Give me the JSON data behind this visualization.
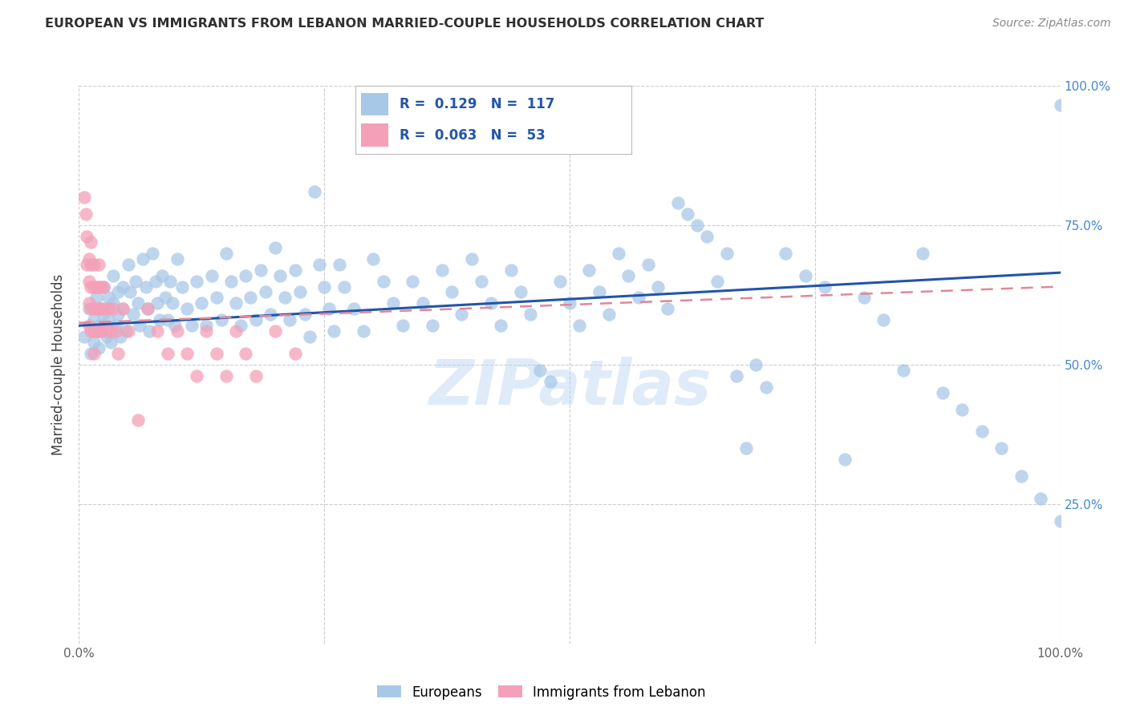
{
  "title": "EUROPEAN VS IMMIGRANTS FROM LEBANON MARRIED-COUPLE HOUSEHOLDS CORRELATION CHART",
  "source": "Source: ZipAtlas.com",
  "ylabel": "Married-couple Households",
  "watermark": "ZIPatlas",
  "xlim": [
    0,
    1
  ],
  "ylim": [
    0,
    1
  ],
  "blue_color": "#a8c8e8",
  "pink_color": "#f4a0b8",
  "line_blue": "#2255aa",
  "line_pink": "#e08898",
  "grid_color": "#cccccc",
  "title_color": "#303030",
  "source_color": "#888888",
  "legend_text_color": "#2255aa",
  "blue_scatter": [
    [
      0.005,
      0.55
    ],
    [
      0.01,
      0.6
    ],
    [
      0.012,
      0.52
    ],
    [
      0.015,
      0.58
    ],
    [
      0.015,
      0.54
    ],
    [
      0.018,
      0.62
    ],
    [
      0.02,
      0.57
    ],
    [
      0.02,
      0.53
    ],
    [
      0.022,
      0.6
    ],
    [
      0.023,
      0.56
    ],
    [
      0.025,
      0.64
    ],
    [
      0.025,
      0.59
    ],
    [
      0.028,
      0.55
    ],
    [
      0.03,
      0.62
    ],
    [
      0.03,
      0.58
    ],
    [
      0.032,
      0.54
    ],
    [
      0.035,
      0.66
    ],
    [
      0.035,
      0.61
    ],
    [
      0.038,
      0.57
    ],
    [
      0.04,
      0.63
    ],
    [
      0.04,
      0.59
    ],
    [
      0.042,
      0.55
    ],
    [
      0.045,
      0.64
    ],
    [
      0.045,
      0.6
    ],
    [
      0.048,
      0.56
    ],
    [
      0.05,
      0.68
    ],
    [
      0.052,
      0.63
    ],
    [
      0.055,
      0.59
    ],
    [
      0.058,
      0.65
    ],
    [
      0.06,
      0.61
    ],
    [
      0.062,
      0.57
    ],
    [
      0.065,
      0.69
    ],
    [
      0.068,
      0.64
    ],
    [
      0.07,
      0.6
    ],
    [
      0.072,
      0.56
    ],
    [
      0.075,
      0.7
    ],
    [
      0.078,
      0.65
    ],
    [
      0.08,
      0.61
    ],
    [
      0.082,
      0.58
    ],
    [
      0.085,
      0.66
    ],
    [
      0.088,
      0.62
    ],
    [
      0.09,
      0.58
    ],
    [
      0.093,
      0.65
    ],
    [
      0.095,
      0.61
    ],
    [
      0.098,
      0.57
    ],
    [
      0.1,
      0.69
    ],
    [
      0.105,
      0.64
    ],
    [
      0.11,
      0.6
    ],
    [
      0.115,
      0.57
    ],
    [
      0.12,
      0.65
    ],
    [
      0.125,
      0.61
    ],
    [
      0.13,
      0.57
    ],
    [
      0.135,
      0.66
    ],
    [
      0.14,
      0.62
    ],
    [
      0.145,
      0.58
    ],
    [
      0.15,
      0.7
    ],
    [
      0.155,
      0.65
    ],
    [
      0.16,
      0.61
    ],
    [
      0.165,
      0.57
    ],
    [
      0.17,
      0.66
    ],
    [
      0.175,
      0.62
    ],
    [
      0.18,
      0.58
    ],
    [
      0.185,
      0.67
    ],
    [
      0.19,
      0.63
    ],
    [
      0.195,
      0.59
    ],
    [
      0.2,
      0.71
    ],
    [
      0.205,
      0.66
    ],
    [
      0.21,
      0.62
    ],
    [
      0.215,
      0.58
    ],
    [
      0.22,
      0.67
    ],
    [
      0.225,
      0.63
    ],
    [
      0.23,
      0.59
    ],
    [
      0.235,
      0.55
    ],
    [
      0.24,
      0.81
    ],
    [
      0.245,
      0.68
    ],
    [
      0.25,
      0.64
    ],
    [
      0.255,
      0.6
    ],
    [
      0.26,
      0.56
    ],
    [
      0.265,
      0.68
    ],
    [
      0.27,
      0.64
    ],
    [
      0.28,
      0.6
    ],
    [
      0.29,
      0.56
    ],
    [
      0.3,
      0.69
    ],
    [
      0.31,
      0.65
    ],
    [
      0.32,
      0.61
    ],
    [
      0.33,
      0.57
    ],
    [
      0.34,
      0.65
    ],
    [
      0.35,
      0.61
    ],
    [
      0.36,
      0.57
    ],
    [
      0.37,
      0.67
    ],
    [
      0.38,
      0.63
    ],
    [
      0.39,
      0.59
    ],
    [
      0.4,
      0.69
    ],
    [
      0.41,
      0.65
    ],
    [
      0.42,
      0.61
    ],
    [
      0.43,
      0.57
    ],
    [
      0.44,
      0.67
    ],
    [
      0.45,
      0.63
    ],
    [
      0.46,
      0.59
    ],
    [
      0.47,
      0.49
    ],
    [
      0.48,
      0.47
    ],
    [
      0.49,
      0.65
    ],
    [
      0.5,
      0.61
    ],
    [
      0.51,
      0.57
    ],
    [
      0.52,
      0.67
    ],
    [
      0.53,
      0.63
    ],
    [
      0.54,
      0.59
    ],
    [
      0.55,
      0.7
    ],
    [
      0.56,
      0.66
    ],
    [
      0.57,
      0.62
    ],
    [
      0.58,
      0.68
    ],
    [
      0.59,
      0.64
    ],
    [
      0.6,
      0.6
    ],
    [
      0.61,
      0.79
    ],
    [
      0.62,
      0.77
    ],
    [
      0.63,
      0.75
    ],
    [
      0.64,
      0.73
    ],
    [
      0.65,
      0.65
    ],
    [
      0.66,
      0.7
    ],
    [
      0.67,
      0.48
    ],
    [
      0.68,
      0.35
    ],
    [
      0.69,
      0.5
    ],
    [
      0.7,
      0.46
    ],
    [
      0.72,
      0.7
    ],
    [
      0.74,
      0.66
    ],
    [
      0.76,
      0.64
    ],
    [
      0.78,
      0.33
    ],
    [
      0.8,
      0.62
    ],
    [
      0.82,
      0.58
    ],
    [
      0.84,
      0.49
    ],
    [
      0.86,
      0.7
    ],
    [
      0.88,
      0.45
    ],
    [
      0.9,
      0.42
    ],
    [
      0.92,
      0.38
    ],
    [
      0.94,
      0.35
    ],
    [
      0.96,
      0.3
    ],
    [
      0.98,
      0.26
    ],
    [
      1.0,
      0.22
    ],
    [
      1.0,
      0.965
    ]
  ],
  "pink_scatter": [
    [
      0.005,
      0.8
    ],
    [
      0.007,
      0.77
    ],
    [
      0.008,
      0.68
    ],
    [
      0.008,
      0.73
    ],
    [
      0.01,
      0.69
    ],
    [
      0.01,
      0.65
    ],
    [
      0.01,
      0.61
    ],
    [
      0.01,
      0.57
    ],
    [
      0.012,
      0.72
    ],
    [
      0.012,
      0.68
    ],
    [
      0.012,
      0.64
    ],
    [
      0.012,
      0.6
    ],
    [
      0.012,
      0.56
    ],
    [
      0.015,
      0.68
    ],
    [
      0.015,
      0.64
    ],
    [
      0.015,
      0.6
    ],
    [
      0.015,
      0.56
    ],
    [
      0.015,
      0.52
    ],
    [
      0.018,
      0.64
    ],
    [
      0.018,
      0.6
    ],
    [
      0.018,
      0.56
    ],
    [
      0.02,
      0.68
    ],
    [
      0.02,
      0.64
    ],
    [
      0.02,
      0.6
    ],
    [
      0.02,
      0.56
    ],
    [
      0.022,
      0.64
    ],
    [
      0.022,
      0.6
    ],
    [
      0.022,
      0.56
    ],
    [
      0.025,
      0.64
    ],
    [
      0.025,
      0.6
    ],
    [
      0.028,
      0.56
    ],
    [
      0.03,
      0.6
    ],
    [
      0.032,
      0.56
    ],
    [
      0.035,
      0.6
    ],
    [
      0.038,
      0.56
    ],
    [
      0.04,
      0.52
    ],
    [
      0.045,
      0.6
    ],
    [
      0.05,
      0.56
    ],
    [
      0.06,
      0.4
    ],
    [
      0.07,
      0.6
    ],
    [
      0.08,
      0.56
    ],
    [
      0.09,
      0.52
    ],
    [
      0.1,
      0.56
    ],
    [
      0.11,
      0.52
    ],
    [
      0.12,
      0.48
    ],
    [
      0.13,
      0.56
    ],
    [
      0.14,
      0.52
    ],
    [
      0.15,
      0.48
    ],
    [
      0.16,
      0.56
    ],
    [
      0.17,
      0.52
    ],
    [
      0.18,
      0.48
    ],
    [
      0.2,
      0.56
    ],
    [
      0.22,
      0.52
    ]
  ],
  "blue_line_x": [
    0.0,
    1.0
  ],
  "blue_line_y": [
    0.57,
    0.665
  ],
  "pink_line_x": [
    0.0,
    1.0
  ],
  "pink_line_y": [
    0.575,
    0.64
  ],
  "yticks": [
    0.25,
    0.5,
    0.75,
    1.0
  ],
  "ytick_labels_right": [
    "25.0%",
    "50.0%",
    "75.0%",
    "100.0%"
  ],
  "xticks": [
    0.0,
    0.25,
    0.5,
    0.75,
    1.0
  ],
  "xtick_labels": [
    "0.0%",
    "",
    "",
    "",
    "100.0%"
  ]
}
